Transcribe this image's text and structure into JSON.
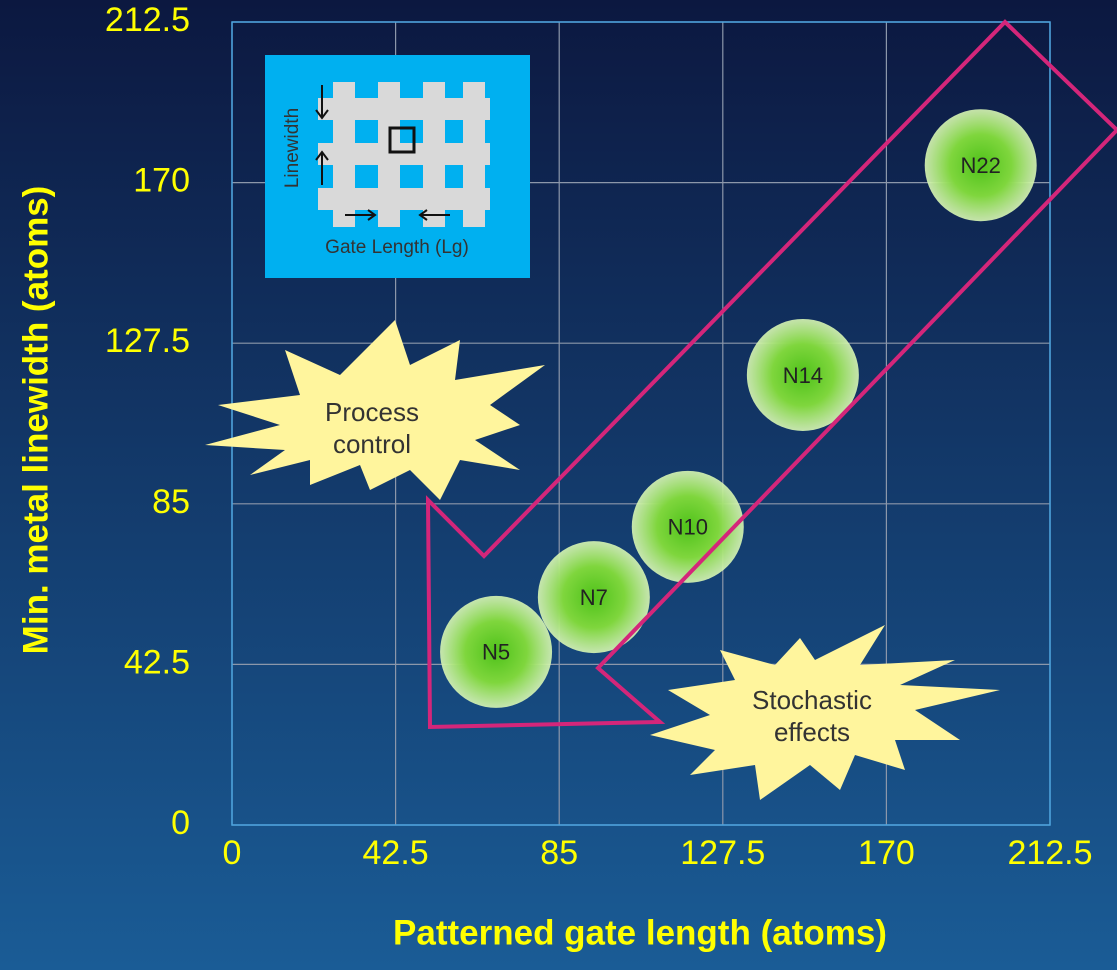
{
  "chart_data": {
    "type": "scatter",
    "x_label": "Patterned gate length (atoms)",
    "y_label": "Min. metal linewidth (atoms)",
    "xlim": [
      0,
      212.5
    ],
    "ylim": [
      0,
      212.5
    ],
    "xticks": [
      0,
      42.5,
      85,
      127.5,
      170,
      212.5
    ],
    "yticks": [
      0,
      42.5,
      85,
      127.5,
      170,
      212.5
    ],
    "grid": true,
    "series": [
      {
        "color": "#5cc71f",
        "x": [
          68.6,
          94,
          118.4,
          148.3,
          194.5
        ],
        "values": [
          45.8,
          60.3,
          78.9,
          119.1,
          174.6
        ],
        "labels": [
          "N5",
          "N7",
          "N10",
          "N14",
          "N22"
        ]
      }
    ],
    "annotations": [
      "Process control",
      "Stochastic effects"
    ],
    "inset_labels": [
      "Linewidth",
      "Gate Length (Lg)"
    ]
  }
}
